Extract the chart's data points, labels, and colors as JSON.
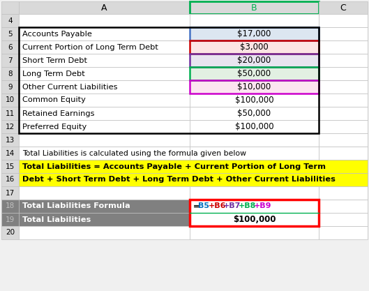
{
  "figsize": [
    5.29,
    4.17
  ],
  "dpi": 100,
  "bg_color": "#f0f0f0",
  "rows": [
    4,
    5,
    6,
    7,
    8,
    9,
    10,
    11,
    12,
    13,
    14,
    15,
    16,
    17,
    18,
    19,
    20
  ],
  "col_labels": [
    "",
    "A",
    "B",
    "C"
  ],
  "row_labels": {
    "5": "Accounts Payable",
    "6": "Current Portion of Long Term Debt",
    "7": "Short Term Debt",
    "8": "Long Term Debt",
    "9": "Other Current Liabilities",
    "10": "Common Equity",
    "11": "Retained Earnings",
    "12": "Preferred Equity",
    "14": "Total Liabilities is calculated using the formula given below",
    "15": "Total Liabilities = Accounts Payable + Current Portion of Long Term",
    "16": "Debt + Short Term Debt + Long Term Debt + Other Current Liabilities",
    "18": "Total Liabilities Formula",
    "19": "Total Liabilities"
  },
  "col_b_values": {
    "5": "$17,000",
    "6": "$3,000",
    "7": "$20,000",
    "8": "$50,000",
    "9": "$10,000",
    "10": "$100,000",
    "11": "$50,000",
    "12": "$100,000",
    "19": "$100,000"
  },
  "col_b_formula": {
    "18": [
      [
        "=",
        "#000000"
      ],
      [
        "B5",
        "#0070c0"
      ],
      [
        "+B6",
        "#cc0000"
      ],
      [
        "+B7",
        "#7030a0"
      ],
      [
        "+B8",
        "#00b050"
      ],
      [
        "+B9",
        "#cc00cc"
      ]
    ]
  },
  "b5_b9_bg": {
    "5": "#dce6f1",
    "6": "#fce4e4",
    "7": "#e8e4f0",
    "8": "#e2f0e2",
    "9": "#fce4f0"
  },
  "b5_b9_border": {
    "5": "#4472c4",
    "6": "#cc0000",
    "7": "#7030a0",
    "8": "#00b050",
    "9": "#cc00cc"
  },
  "yellow_rows": [
    15,
    16
  ],
  "gray_rows": [
    18,
    19
  ],
  "table_border_rows": [
    5,
    12
  ],
  "header_color": "#d9d9d9",
  "row_num_color": "#d9d9d9",
  "gray_color": "#808080",
  "yellow_color": "#ffff00",
  "white": "#ffffff",
  "cell_line_color": "#c0c0c0",
  "table_outer_color": "#000000",
  "b_header_border": "#00b050",
  "red_border_color": "#ff0000"
}
